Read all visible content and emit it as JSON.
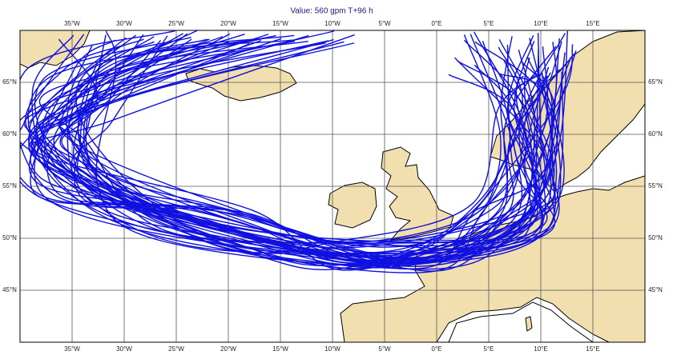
{
  "title": "Value: 560 gpm T+96 h",
  "map": {
    "lonlim": [
      -40,
      20
    ],
    "latlim": [
      40,
      70
    ],
    "lonticks": [
      {
        "value": -35,
        "label": "35°W"
      },
      {
        "value": -30,
        "label": "30°W"
      },
      {
        "value": -25,
        "label": "25°W"
      },
      {
        "value": -20,
        "label": "20°W"
      },
      {
        "value": -15,
        "label": "15°W"
      },
      {
        "value": -10,
        "label": "10°W"
      },
      {
        "value": -5,
        "label": "5°W"
      },
      {
        "value": 0,
        "label": "0°E"
      },
      {
        "value": 5,
        "label": "5°E"
      },
      {
        "value": 10,
        "label": "10°E"
      },
      {
        "value": 15,
        "label": "15°E"
      }
    ],
    "latticks": [
      {
        "value": 65,
        "label": "65°N"
      },
      {
        "value": 60,
        "label": "60°N"
      },
      {
        "value": 55,
        "label": "55°N"
      },
      {
        "value": 50,
        "label": "50°N"
      },
      {
        "value": 45,
        "label": "45°N"
      }
    ]
  }
}
